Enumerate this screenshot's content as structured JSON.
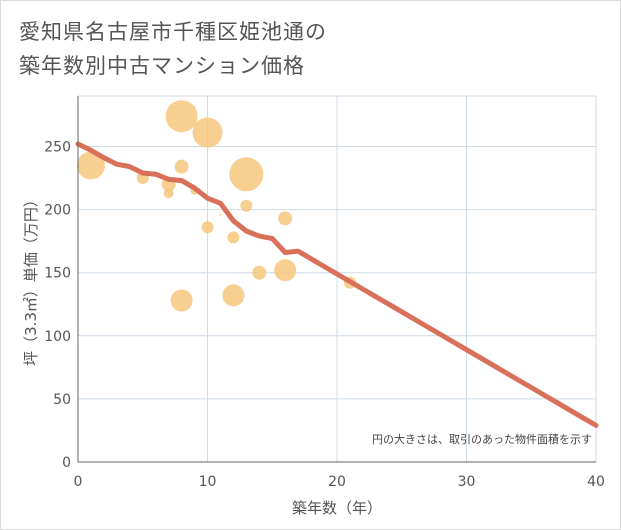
{
  "title": {
    "line1": "愛知県名古屋市千種区姫池通の",
    "line2": "築年数別中古マンション価格"
  },
  "chart_data": {
    "type": "scatter",
    "xlabel": "築年数（年）",
    "ylabel": "坪（3.3㎡）単価（万円）",
    "xlim": [
      0,
      40
    ],
    "ylim": [
      0,
      290
    ],
    "x_ticks": [
      0,
      10,
      20,
      30,
      40
    ],
    "y_ticks": [
      0,
      50,
      100,
      150,
      200,
      250
    ],
    "grid": true,
    "note": "円の大きさは、取引のあった物件面積を示す",
    "colors": {
      "bubble": "#f5c77e",
      "trend": "#d9705a",
      "grid": "#cfdbe6"
    },
    "points": [
      {
        "x": 1,
        "y": 235,
        "size": 14
      },
      {
        "x": 5,
        "y": 225,
        "size": 6
      },
      {
        "x": 7,
        "y": 213,
        "size": 5
      },
      {
        "x": 7,
        "y": 220,
        "size": 7
      },
      {
        "x": 8,
        "y": 234,
        "size": 7
      },
      {
        "x": 8,
        "y": 274,
        "size": 16
      },
      {
        "x": 8,
        "y": 128,
        "size": 11
      },
      {
        "x": 9,
        "y": 215,
        "size": 4
      },
      {
        "x": 10,
        "y": 261,
        "size": 15
      },
      {
        "x": 10,
        "y": 186,
        "size": 6
      },
      {
        "x": 11,
        "y": 196,
        "size": 1
      },
      {
        "x": 12,
        "y": 178,
        "size": 6
      },
      {
        "x": 12,
        "y": 132,
        "size": 11
      },
      {
        "x": 13,
        "y": 228,
        "size": 17
      },
      {
        "x": 13,
        "y": 203,
        "size": 6
      },
      {
        "x": 14,
        "y": 150,
        "size": 7
      },
      {
        "x": 16,
        "y": 193,
        "size": 7
      },
      {
        "x": 16,
        "y": 152,
        "size": 11
      },
      {
        "x": 21,
        "y": 142,
        "size": 6
      }
    ],
    "trend": {
      "x": [
        0,
        1,
        2,
        3,
        4,
        5,
        6,
        7,
        8,
        9,
        10,
        11,
        12,
        13,
        14,
        15,
        16,
        17,
        18,
        19,
        20,
        21,
        22,
        23,
        24,
        25,
        26,
        27,
        28,
        29,
        30,
        31,
        32,
        33,
        34,
        35,
        36,
        37,
        38,
        39,
        40
      ],
      "y": [
        252,
        247,
        241,
        236,
        234,
        229,
        228,
        224,
        223,
        217,
        209,
        205,
        191,
        183,
        179,
        177,
        166,
        167,
        161,
        155,
        149,
        143,
        137,
        131,
        125,
        119,
        113,
        107,
        101,
        95,
        89,
        83,
        77,
        71,
        65,
        59,
        53,
        47,
        41,
        35,
        29
      ]
    }
  }
}
